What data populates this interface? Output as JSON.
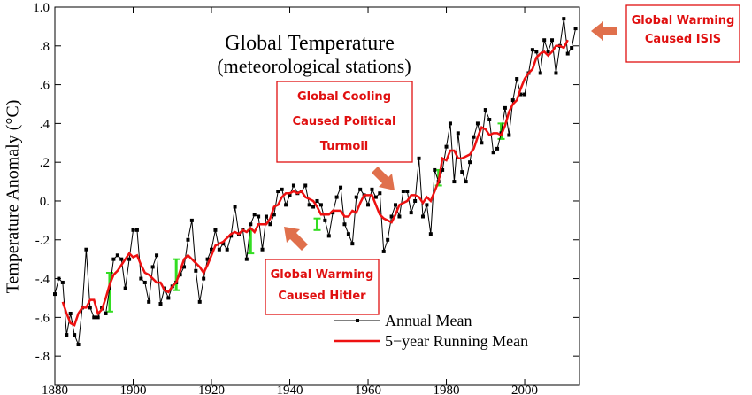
{
  "chart_data": {
    "type": "line",
    "title": "Global Temperature",
    "subtitle": "(meteorological stations)",
    "y_label": "Temperature Anomaly (°C)",
    "xlim": [
      1880,
      2014
    ],
    "ylim": [
      -0.95,
      1.0
    ],
    "xticks": [
      1880,
      1900,
      1920,
      1940,
      1960,
      1980,
      2000
    ],
    "yticks": [
      {
        "value": 1.0,
        "label": "1.0"
      },
      {
        "value": 0.8,
        "label": ".8"
      },
      {
        "value": 0.6,
        "label": ".6"
      },
      {
        "value": 0.4,
        "label": ".4"
      },
      {
        "value": 0.2,
        "label": ".2"
      },
      {
        "value": 0,
        "label": "0."
      },
      {
        "value": -0.2,
        "label": "-.2"
      },
      {
        "value": -0.4,
        "label": "-.4"
      },
      {
        "value": -0.6,
        "label": "-.6"
      },
      {
        "value": -0.8,
        "label": "-.8"
      }
    ],
    "x": [
      1880,
      1881,
      1882,
      1883,
      1884,
      1885,
      1886,
      1887,
      1888,
      1889,
      1890,
      1891,
      1892,
      1893,
      1894,
      1895,
      1896,
      1897,
      1898,
      1899,
      1900,
      1901,
      1902,
      1903,
      1904,
      1905,
      1906,
      1907,
      1908,
      1909,
      1910,
      1911,
      1912,
      1913,
      1914,
      1915,
      1916,
      1917,
      1918,
      1919,
      1920,
      1921,
      1922,
      1923,
      1924,
      1925,
      1926,
      1927,
      1928,
      1929,
      1930,
      1931,
      1932,
      1933,
      1934,
      1935,
      1936,
      1937,
      1938,
      1939,
      1940,
      1941,
      1942,
      1943,
      1944,
      1945,
      1946,
      1947,
      1948,
      1949,
      1950,
      1951,
      1952,
      1953,
      1954,
      1955,
      1956,
      1957,
      1958,
      1959,
      1960,
      1961,
      1962,
      1963,
      1964,
      1965,
      1966,
      1967,
      1968,
      1969,
      1970,
      1971,
      1972,
      1973,
      1974,
      1975,
      1976,
      1977,
      1978,
      1979,
      1980,
      1981,
      1982,
      1983,
      1984,
      1985,
      1986,
      1987,
      1988,
      1989,
      1990,
      1991,
      1992,
      1993,
      1994,
      1995,
      1996,
      1997,
      1998,
      1999,
      2000,
      2001,
      2002,
      2003,
      2004,
      2005,
      2006,
      2007,
      2008,
      2009,
      2010,
      2011,
      2012,
      2013
    ],
    "series": [
      {
        "name": "Annual Mean",
        "color": "#000000",
        "markers": true,
        "values": [
          -0.48,
          -0.4,
          -0.42,
          -0.69,
          -0.58,
          -0.69,
          -0.74,
          -0.55,
          -0.25,
          -0.55,
          -0.6,
          -0.6,
          -0.55,
          -0.58,
          -0.45,
          -0.3,
          -0.28,
          -0.3,
          -0.45,
          -0.3,
          -0.15,
          -0.15,
          -0.4,
          -0.42,
          -0.52,
          -0.34,
          -0.28,
          -0.53,
          -0.45,
          -0.5,
          -0.44,
          -0.42,
          -0.38,
          -0.34,
          -0.2,
          -0.1,
          -0.36,
          -0.52,
          -0.4,
          -0.3,
          -0.25,
          -0.15,
          -0.25,
          -0.22,
          -0.25,
          -0.18,
          -0.03,
          -0.17,
          -0.15,
          -0.3,
          -0.12,
          -0.07,
          -0.08,
          -0.25,
          -0.08,
          -0.12,
          -0.07,
          0.05,
          0.06,
          -0.02,
          0.03,
          0.08,
          0.04,
          0.05,
          0.08,
          -0.02,
          -0.03,
          0.0,
          -0.02,
          -0.1,
          -0.18,
          -0.06,
          0.02,
          0.07,
          -0.12,
          -0.17,
          -0.22,
          0.02,
          0.06,
          0.03,
          -0.02,
          0.06,
          0.02,
          0.04,
          -0.26,
          -0.2,
          -0.08,
          -0.02,
          -0.08,
          0.05,
          0.05,
          -0.06,
          0.0,
          0.22,
          -0.08,
          -0.02,
          -0.17,
          0.16,
          0.1,
          0.16,
          0.28,
          0.4,
          0.1,
          0.35,
          0.15,
          0.1,
          0.2,
          0.33,
          0.4,
          0.3,
          0.47,
          0.42,
          0.25,
          0.27,
          0.35,
          0.48,
          0.34,
          0.52,
          0.63,
          0.55,
          0.55,
          0.66,
          0.78,
          0.77,
          0.66,
          0.83,
          0.77,
          0.83,
          0.66,
          0.8,
          0.94,
          0.76,
          0.79,
          0.89
        ]
      },
      {
        "name": "5−year Running Mean",
        "color": "#ee1111",
        "markers": false,
        "values": [
          null,
          null,
          -0.52,
          -0.58,
          -0.63,
          -0.64,
          -0.58,
          -0.55,
          -0.55,
          -0.51,
          -0.51,
          -0.58,
          -0.56,
          -0.5,
          -0.43,
          -0.38,
          -0.36,
          -0.33,
          -0.3,
          -0.27,
          -0.29,
          -0.28,
          -0.33,
          -0.37,
          -0.38,
          -0.4,
          -0.42,
          -0.42,
          -0.46,
          -0.47,
          -0.44,
          -0.42,
          -0.36,
          -0.3,
          -0.28,
          -0.3,
          -0.32,
          -0.34,
          -0.37,
          -0.33,
          -0.28,
          -0.23,
          -0.22,
          -0.21,
          -0.19,
          -0.17,
          -0.16,
          -0.17,
          -0.15,
          -0.16,
          -0.14,
          -0.16,
          -0.12,
          -0.12,
          -0.12,
          -0.09,
          -0.03,
          -0.02,
          0.02,
          0.04,
          0.04,
          0.05,
          0.04,
          0.05,
          0.02,
          0.01,
          0.0,
          -0.03,
          -0.07,
          -0.07,
          -0.07,
          -0.05,
          -0.05,
          -0.05,
          -0.08,
          -0.08,
          -0.05,
          -0.06,
          -0.01,
          0.03,
          0.03,
          0.03,
          -0.02,
          -0.07,
          -0.09,
          -0.1,
          -0.11,
          -0.07,
          -0.02,
          -0.01,
          0.0,
          0.03,
          0.03,
          0.02,
          -0.01,
          0.02,
          0.0,
          0.05,
          0.1,
          0.22,
          0.21,
          0.26,
          0.26,
          0.22,
          0.22,
          0.23,
          0.24,
          0.27,
          0.33,
          0.38,
          0.37,
          0.34,
          0.35,
          0.35,
          0.34,
          0.39,
          0.46,
          0.5,
          0.52,
          0.58,
          0.63,
          0.66,
          0.68,
          0.74,
          0.76,
          0.77,
          0.75,
          0.77,
          0.8,
          0.8,
          0.79,
          0.83,
          null,
          null
        ]
      }
    ],
    "error_bars": {
      "color": "#33dd22",
      "x": [
        1894,
        1911,
        1930,
        1947,
        1978,
        1994
      ],
      "values": [
        -0.47,
        -0.38,
        -0.21,
        -0.12,
        0.12,
        0.36
      ],
      "errors": [
        0.1,
        0.08,
        0.06,
        0.03,
        0.04,
        0.04
      ]
    },
    "annotations": [
      {
        "lines": [
          "Global Warming",
          "Caused ISIS"
        ]
      },
      {
        "lines": [
          "Global Cooling",
          "Caused Political",
          "Turmoil"
        ]
      },
      {
        "lines": [
          "Global Warming",
          "Caused Hitler"
        ]
      }
    ]
  }
}
